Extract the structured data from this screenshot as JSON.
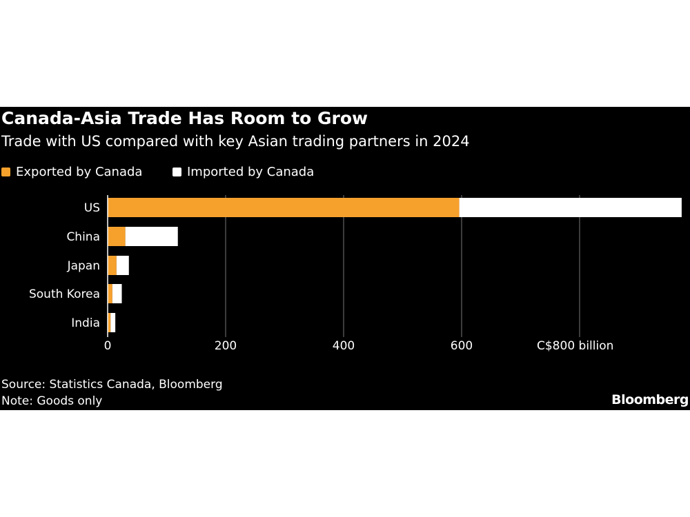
{
  "chart_data": {
    "type": "bar",
    "orientation": "horizontal",
    "stacked": true,
    "title": "Canada-Asia Trade Has Room to Grow",
    "subtitle": "Trade with US compared with key Asian trading partners in 2024",
    "categories": [
      "US",
      "China",
      "Japan",
      "South Korea",
      "India"
    ],
    "series": [
      {
        "name": "Exported by Canada",
        "color": "#f7a12d",
        "values": [
          596,
          30,
          15,
          8,
          5
        ]
      },
      {
        "name": "Imported by Canada",
        "color": "#ffffff",
        "values": [
          377,
          89,
          21,
          16,
          8
        ]
      }
    ],
    "xlim": [
      0,
      975
    ],
    "xticks": [
      0,
      200,
      400,
      600,
      800
    ],
    "xtick_labels": [
      "0",
      "200",
      "400",
      "600",
      "C$800 billion"
    ],
    "grid": true,
    "legend": "top-left",
    "source": "Source: Statistics Canada, Bloomberg",
    "note": "Note: Goods only",
    "logo": "Bloomberg"
  }
}
